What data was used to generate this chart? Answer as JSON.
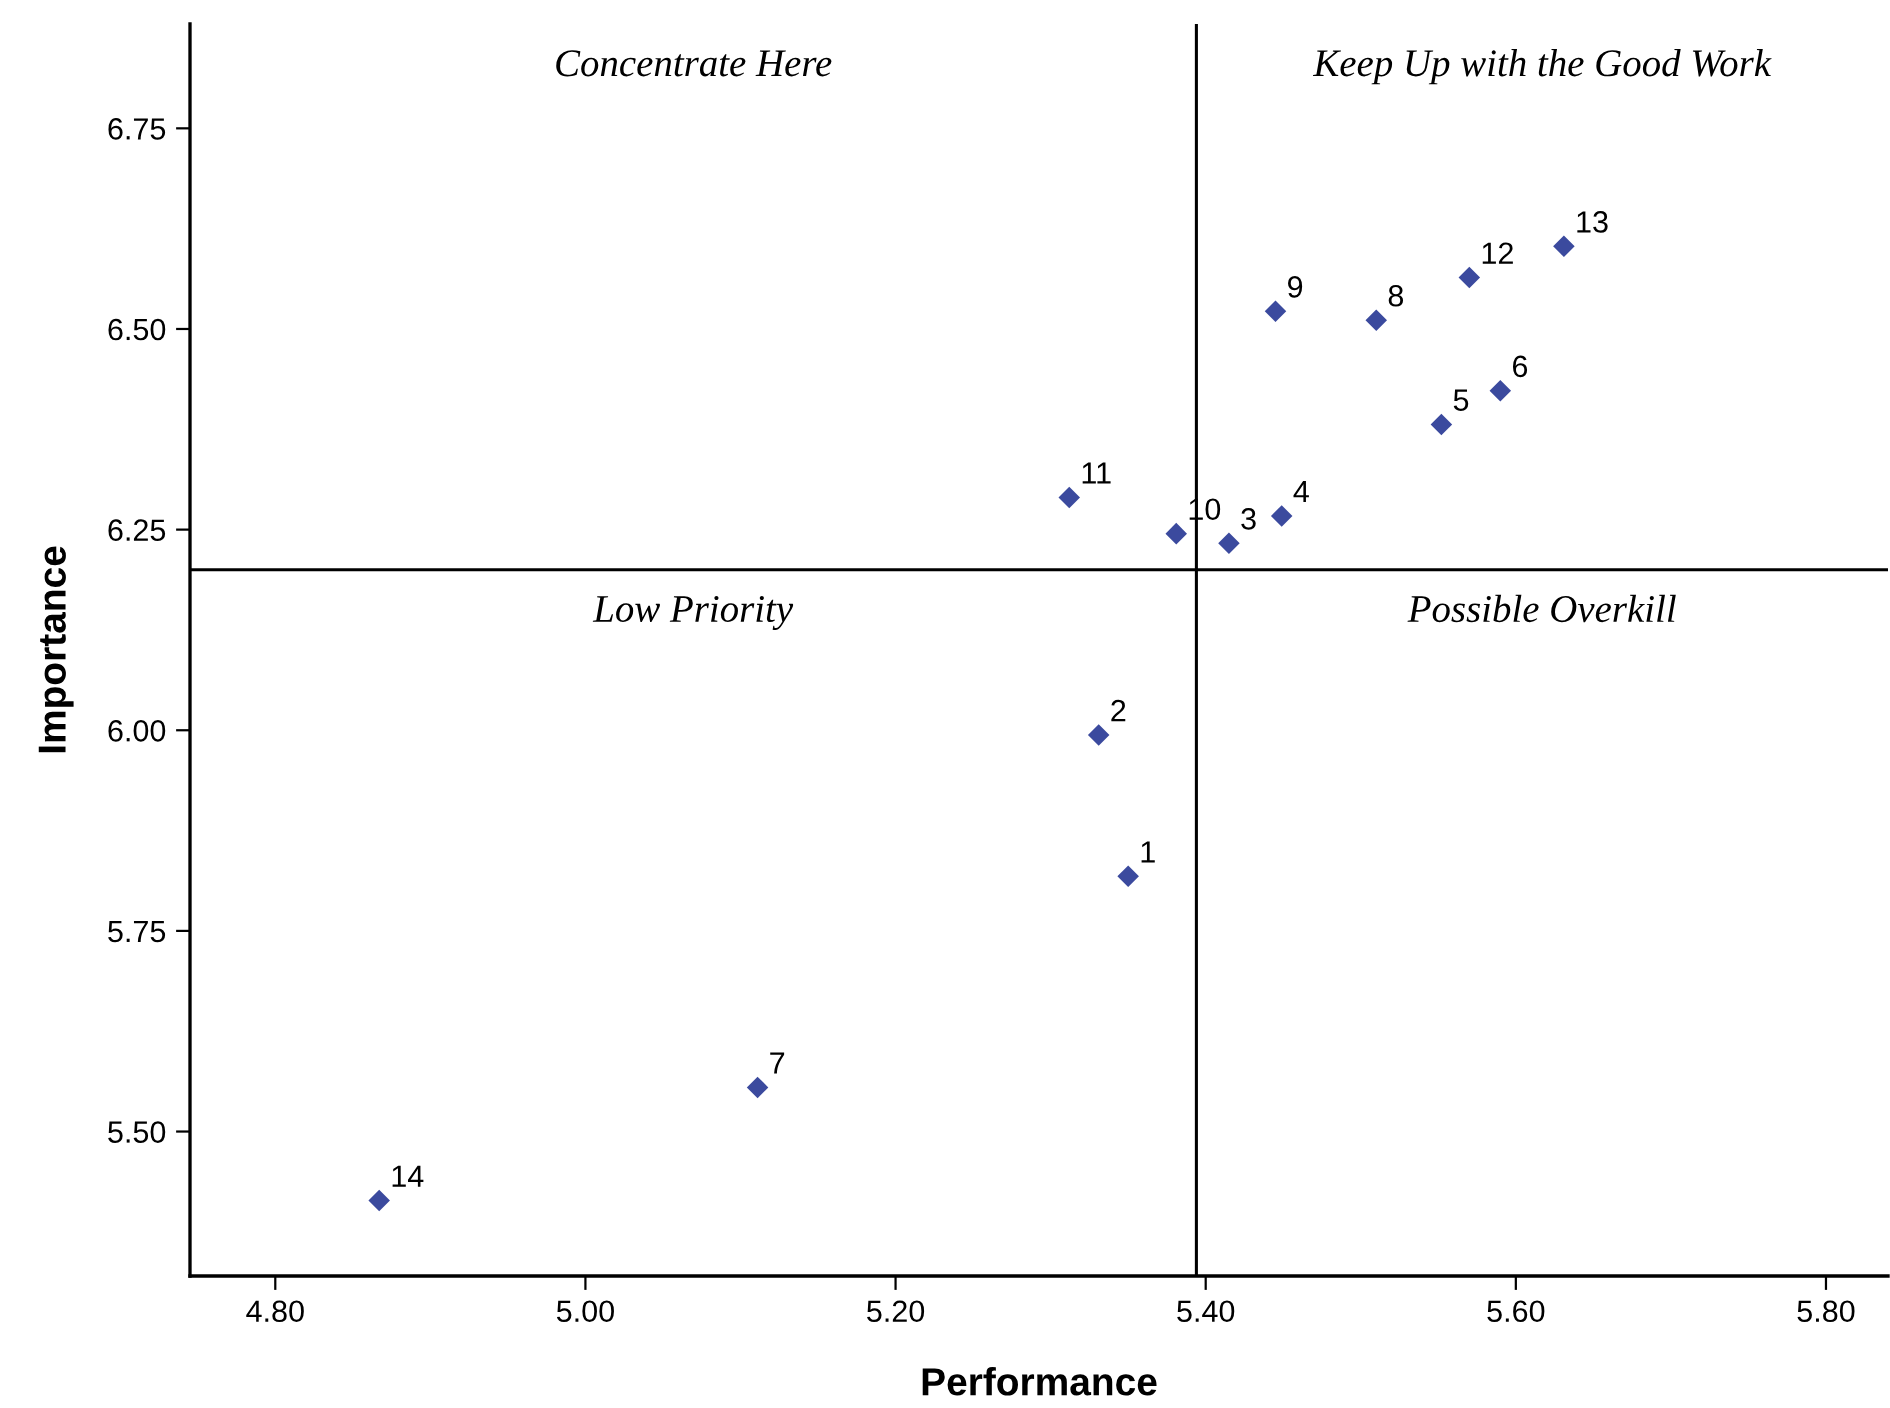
{
  "chart_data": {
    "type": "scatter",
    "xlabel": "Performance",
    "ylabel": "Importance",
    "x": [
      5.35,
      5.331,
      5.415,
      5.449,
      5.552,
      5.59,
      5.111,
      5.51,
      5.445,
      5.381,
      5.312,
      5.57,
      5.631,
      4.867
    ],
    "series": [
      {
        "color": "#3b4a9e",
        "values": [
          5.818,
          5.994,
          6.233,
          6.267,
          6.381,
          6.423,
          5.555,
          6.511,
          6.522,
          6.245,
          6.29,
          6.564,
          6.603,
          5.414
        ]
      }
    ],
    "marker": "diamond",
    "grid": false,
    "legend": false,
    "xlim": [
      4.745,
      5.84
    ],
    "xticks": [
      {
        "value": 4.8,
        "label": "4.80"
      },
      {
        "value": 5.0,
        "label": "5.00"
      },
      {
        "value": 5.2,
        "label": "5.20"
      },
      {
        "value": 5.4,
        "label": "5.40"
      },
      {
        "value": 5.6,
        "label": "5.60"
      },
      {
        "value": 5.8,
        "label": "5.80"
      }
    ],
    "ylim": [
      5.32,
      6.88
    ],
    "yticks": [
      {
        "value": 5.5,
        "label": "5.50"
      },
      {
        "value": 5.75,
        "label": "5.75"
      },
      {
        "value": 6.0,
        "label": "6.00"
      },
      {
        "value": 6.25,
        "label": "6.25"
      },
      {
        "value": 6.5,
        "label": "6.50"
      },
      {
        "value": 6.75,
        "label": "6.75"
      }
    ],
    "ref_lines": [
      {
        "axis": "x",
        "value": 5.394,
        "color": "#000000"
      },
      {
        "axis": "y",
        "value": 6.2,
        "color": "#000000"
      }
    ],
    "annotations": [
      "Concentrate Here",
      "Keep Up with the Good Work",
      "Low Priority",
      "Possible Overkill",
      {
        "text": "1",
        "x": 5.35,
        "y": 5.818
      },
      {
        "text": "2",
        "x": 5.331,
        "y": 5.994
      },
      {
        "text": "3",
        "x": 5.415,
        "y": 6.233
      },
      {
        "text": "4",
        "x": 5.449,
        "y": 6.267
      },
      {
        "text": "5",
        "x": 5.552,
        "y": 6.381
      },
      {
        "text": "6",
        "x": 5.59,
        "y": 6.423
      },
      {
        "text": "7",
        "x": 5.111,
        "y": 5.555
      },
      {
        "text": "8",
        "x": 5.51,
        "y": 6.511
      },
      {
        "text": "9",
        "x": 5.445,
        "y": 6.522
      },
      {
        "text": "10",
        "x": 5.381,
        "y": 6.245
      },
      {
        "text": "11",
        "x": 5.312,
        "y": 6.29
      },
      {
        "text": "12",
        "x": 5.57,
        "y": 6.564
      },
      {
        "text": "13",
        "x": 5.631,
        "y": 6.603
      },
      {
        "text": "14",
        "x": 4.867,
        "y": 5.414
      }
    ]
  }
}
